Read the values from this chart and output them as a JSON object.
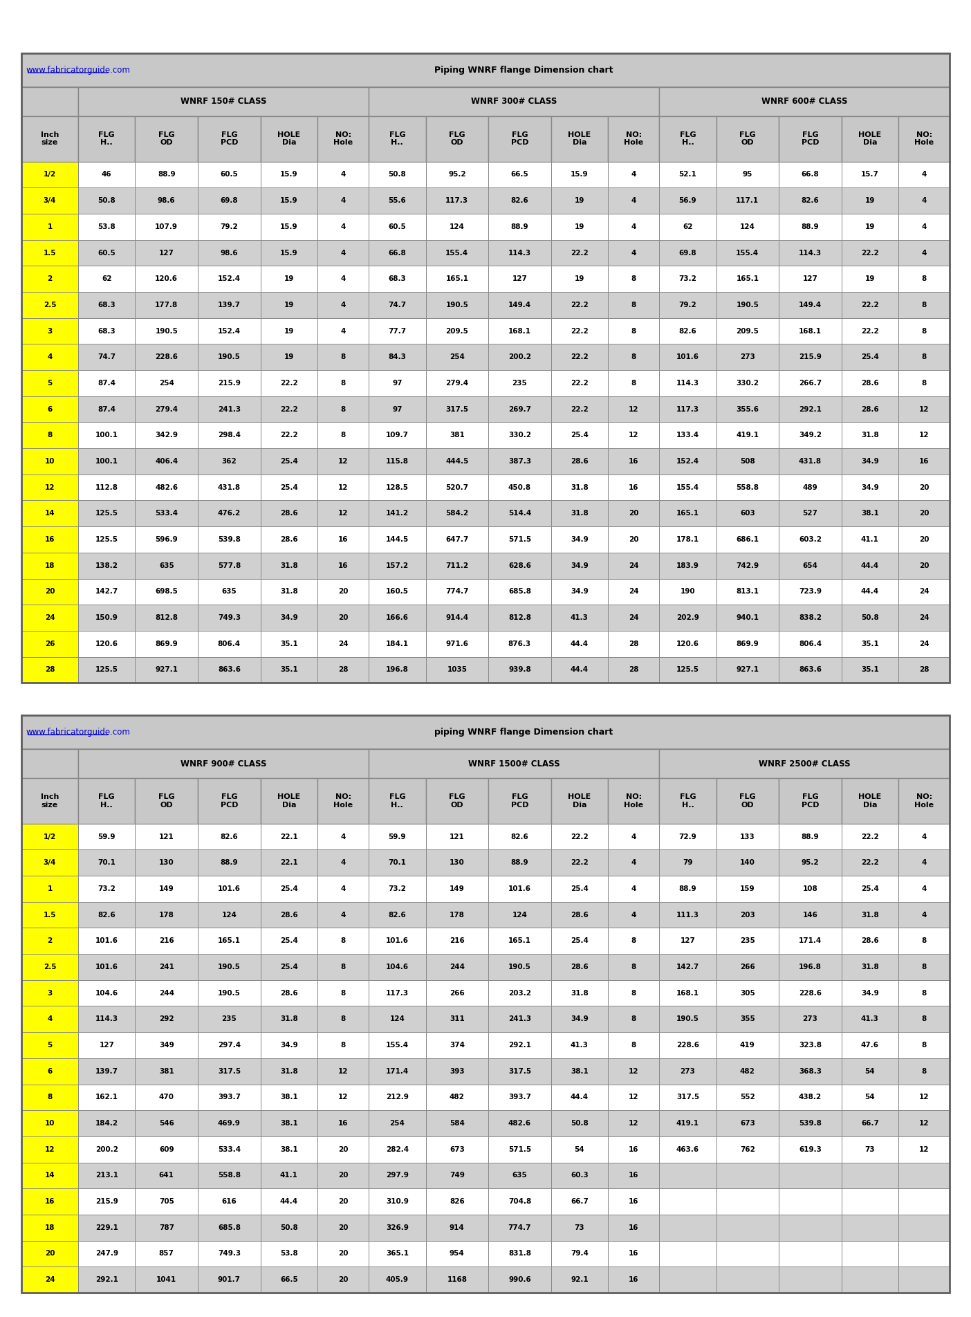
{
  "table1_title": "Piping WNRF flange Dimension chart",
  "table1_url": "www.fabricatorguide.com",
  "table2_title": "piping WNRF flange Dimension chart",
  "table2_url": "www.fabricatorguide.com",
  "class_headers_t1": [
    "WNRF 150# CLASS",
    "WNRF 300# CLASS",
    "WNRF 600# CLASS"
  ],
  "class_headers_t2": [
    "WNRF 900# CLASS",
    "WNRF 1500# CLASS",
    "WNRF 2500# CLASS"
  ],
  "col_headers": [
    "Inch\nsize",
    "FLG\nH..",
    "FLG\nOD",
    "FLG\nPCD",
    "HOLE\nDia",
    "NO:\nHole"
  ],
  "table1_data": [
    [
      "1/2",
      46,
      88.9,
      60.5,
      15.9,
      4,
      50.8,
      95.2,
      66.5,
      15.9,
      4,
      52.1,
      95,
      66.8,
      15.7,
      4
    ],
    [
      "3/4",
      50.8,
      98.6,
      69.8,
      15.9,
      4,
      55.6,
      117.3,
      82.6,
      19,
      4,
      56.9,
      117.1,
      82.6,
      19,
      4
    ],
    [
      "1",
      53.8,
      107.9,
      79.2,
      15.9,
      4,
      60.5,
      124,
      88.9,
      19,
      4,
      62,
      124,
      88.9,
      19,
      4
    ],
    [
      "1.5",
      60.5,
      127,
      98.6,
      15.9,
      4,
      66.8,
      155.4,
      114.3,
      22.2,
      4,
      69.8,
      155.4,
      114.3,
      22.2,
      4
    ],
    [
      "2",
      62,
      120.6,
      152.4,
      19,
      4,
      68.3,
      165.1,
      127,
      19,
      8,
      73.2,
      165.1,
      127,
      19,
      8
    ],
    [
      "2.5",
      68.3,
      177.8,
      139.7,
      19,
      4,
      74.7,
      190.5,
      149.4,
      22.2,
      8,
      79.2,
      190.5,
      149.4,
      22.2,
      8
    ],
    [
      "3",
      68.3,
      190.5,
      152.4,
      19,
      4,
      77.7,
      209.5,
      168.1,
      22.2,
      8,
      82.6,
      209.5,
      168.1,
      22.2,
      8
    ],
    [
      "4",
      74.7,
      228.6,
      190.5,
      19,
      8,
      84.3,
      254,
      200.2,
      22.2,
      8,
      101.6,
      273,
      215.9,
      25.4,
      8
    ],
    [
      "5",
      87.4,
      254,
      215.9,
      22.2,
      8,
      97,
      279.4,
      235,
      22.2,
      8,
      114.3,
      330.2,
      266.7,
      28.6,
      8
    ],
    [
      "6",
      87.4,
      279.4,
      241.3,
      22.2,
      8,
      97,
      317.5,
      269.7,
      22.2,
      12,
      117.3,
      355.6,
      292.1,
      28.6,
      12
    ],
    [
      "8",
      100.1,
      342.9,
      298.4,
      22.2,
      8,
      109.7,
      381,
      330.2,
      25.4,
      12,
      133.4,
      419.1,
      349.2,
      31.8,
      12
    ],
    [
      "10",
      100.1,
      406.4,
      362,
      25.4,
      12,
      115.8,
      444.5,
      387.3,
      28.6,
      16,
      152.4,
      508,
      431.8,
      34.9,
      16
    ],
    [
      "12",
      112.8,
      482.6,
      431.8,
      25.4,
      12,
      128.5,
      520.7,
      450.8,
      31.8,
      16,
      155.4,
      558.8,
      489,
      34.9,
      20
    ],
    [
      "14",
      125.5,
      533.4,
      476.2,
      28.6,
      12,
      141.2,
      584.2,
      514.4,
      31.8,
      20,
      165.1,
      603,
      527,
      38.1,
      20
    ],
    [
      "16",
      125.5,
      596.9,
      539.8,
      28.6,
      16,
      144.5,
      647.7,
      571.5,
      34.9,
      20,
      178.1,
      686.1,
      603.2,
      41.1,
      20
    ],
    [
      "18",
      138.2,
      635,
      577.8,
      31.8,
      16,
      157.2,
      711.2,
      628.6,
      34.9,
      24,
      183.9,
      742.9,
      654,
      44.4,
      20
    ],
    [
      "20",
      142.7,
      698.5,
      635,
      31.8,
      20,
      160.5,
      774.7,
      685.8,
      34.9,
      24,
      190,
      813.1,
      723.9,
      44.4,
      24
    ],
    [
      "24",
      150.9,
      812.8,
      749.3,
      34.9,
      20,
      166.6,
      914.4,
      812.8,
      41.3,
      24,
      202.9,
      940.1,
      838.2,
      50.8,
      24
    ],
    [
      "26",
      120.6,
      869.9,
      806.4,
      35.1,
      24,
      184.1,
      971.6,
      876.3,
      44.4,
      28,
      120.6,
      869.9,
      806.4,
      35.1,
      24
    ],
    [
      "28",
      125.5,
      927.1,
      863.6,
      35.1,
      28,
      196.8,
      1035,
      939.8,
      44.4,
      28,
      125.5,
      927.1,
      863.6,
      35.1,
      28
    ]
  ],
  "table2_data": [
    [
      "1/2",
      59.9,
      121,
      82.6,
      22.1,
      4,
      59.9,
      121,
      82.6,
      22.2,
      4,
      72.9,
      133,
      88.9,
      22.2,
      4
    ],
    [
      "3/4",
      70.1,
      130,
      88.9,
      22.1,
      4,
      70.1,
      130,
      88.9,
      22.2,
      4,
      79,
      140,
      95.2,
      22.2,
      4
    ],
    [
      "1",
      73.2,
      149,
      101.6,
      25.4,
      4,
      73.2,
      149,
      101.6,
      25.4,
      4,
      88.9,
      159,
      108,
      25.4,
      4
    ],
    [
      "1.5",
      82.6,
      178,
      124,
      28.6,
      4,
      82.6,
      178,
      124,
      28.6,
      4,
      111.3,
      203,
      146,
      31.8,
      4
    ],
    [
      "2",
      101.6,
      216,
      165.1,
      25.4,
      8,
      101.6,
      216,
      165.1,
      25.4,
      8,
      127,
      235,
      171.4,
      28.6,
      8
    ],
    [
      "2.5",
      101.6,
      241,
      190.5,
      25.4,
      8,
      104.6,
      244,
      190.5,
      28.6,
      8,
      142.7,
      266,
      196.8,
      31.8,
      8
    ],
    [
      "3",
      104.6,
      244,
      190.5,
      28.6,
      8,
      117.3,
      266,
      203.2,
      31.8,
      8,
      168.1,
      305,
      228.6,
      34.9,
      8
    ],
    [
      "4",
      114.3,
      292,
      235,
      31.8,
      8,
      124,
      311,
      241.3,
      34.9,
      8,
      190.5,
      355,
      273,
      41.3,
      8
    ],
    [
      "5",
      127,
      349,
      297.4,
      34.9,
      8,
      155.4,
      374,
      292.1,
      41.3,
      8,
      228.6,
      419,
      323.8,
      47.6,
      8
    ],
    [
      "6",
      139.7,
      381,
      317.5,
      31.8,
      12,
      171.4,
      393,
      317.5,
      38.1,
      12,
      273,
      482,
      368.3,
      54,
      8
    ],
    [
      "8",
      162.1,
      470,
      393.7,
      38.1,
      12,
      212.9,
      482,
      393.7,
      44.4,
      12,
      317.5,
      552,
      438.2,
      54,
      12
    ],
    [
      "10",
      184.2,
      546,
      469.9,
      38.1,
      16,
      254,
      584,
      482.6,
      50.8,
      12,
      419.1,
      673,
      539.8,
      66.7,
      12
    ],
    [
      "12",
      200.2,
      609,
      533.4,
      38.1,
      20,
      282.4,
      673,
      571.5,
      54,
      16,
      463.6,
      762,
      619.3,
      73,
      12
    ],
    [
      "14",
      213.1,
      641,
      558.8,
      41.1,
      20,
      297.9,
      749,
      635,
      60.3,
      16,
      "",
      "",
      "",
      "",
      ""
    ],
    [
      "16",
      215.9,
      705,
      616,
      44.4,
      20,
      310.9,
      826,
      704.8,
      66.7,
      16,
      "",
      "",
      "",
      "",
      ""
    ],
    [
      "18",
      229.1,
      787,
      685.8,
      50.8,
      20,
      326.9,
      914,
      774.7,
      73,
      16,
      "",
      "",
      "",
      "",
      ""
    ],
    [
      "20",
      247.9,
      857,
      749.3,
      53.8,
      20,
      365.1,
      954,
      831.8,
      79.4,
      16,
      "",
      "",
      "",
      "",
      ""
    ],
    [
      "24",
      292.1,
      1041,
      901.7,
      66.5,
      20,
      405.9,
      1168,
      990.6,
      92.1,
      16,
      "",
      "",
      "",
      "",
      ""
    ]
  ],
  "yellow_rows_t1": [
    "1/2",
    "3/4",
    "1",
    "1.5",
    "2",
    "2.5",
    "3",
    "4",
    "5",
    "6",
    "8",
    "10",
    "12",
    "14",
    "16",
    "18",
    "20",
    "24",
    "26",
    "28"
  ],
  "yellow_rows_t2": [
    "1/2",
    "3/4",
    "1",
    "1.5",
    "2",
    "2.5",
    "3",
    "4",
    "5",
    "6",
    "8",
    "10",
    "12",
    "14",
    "16",
    "18",
    "20",
    "24"
  ],
  "bg_color": "#ffffff",
  "header_bg": "#c0c0c0",
  "row_alt1": "#ffffff",
  "row_alt2": "#d3d3d3",
  "yellow": "#ffff00",
  "url_color": "#0000ff",
  "border_color": "#000000"
}
